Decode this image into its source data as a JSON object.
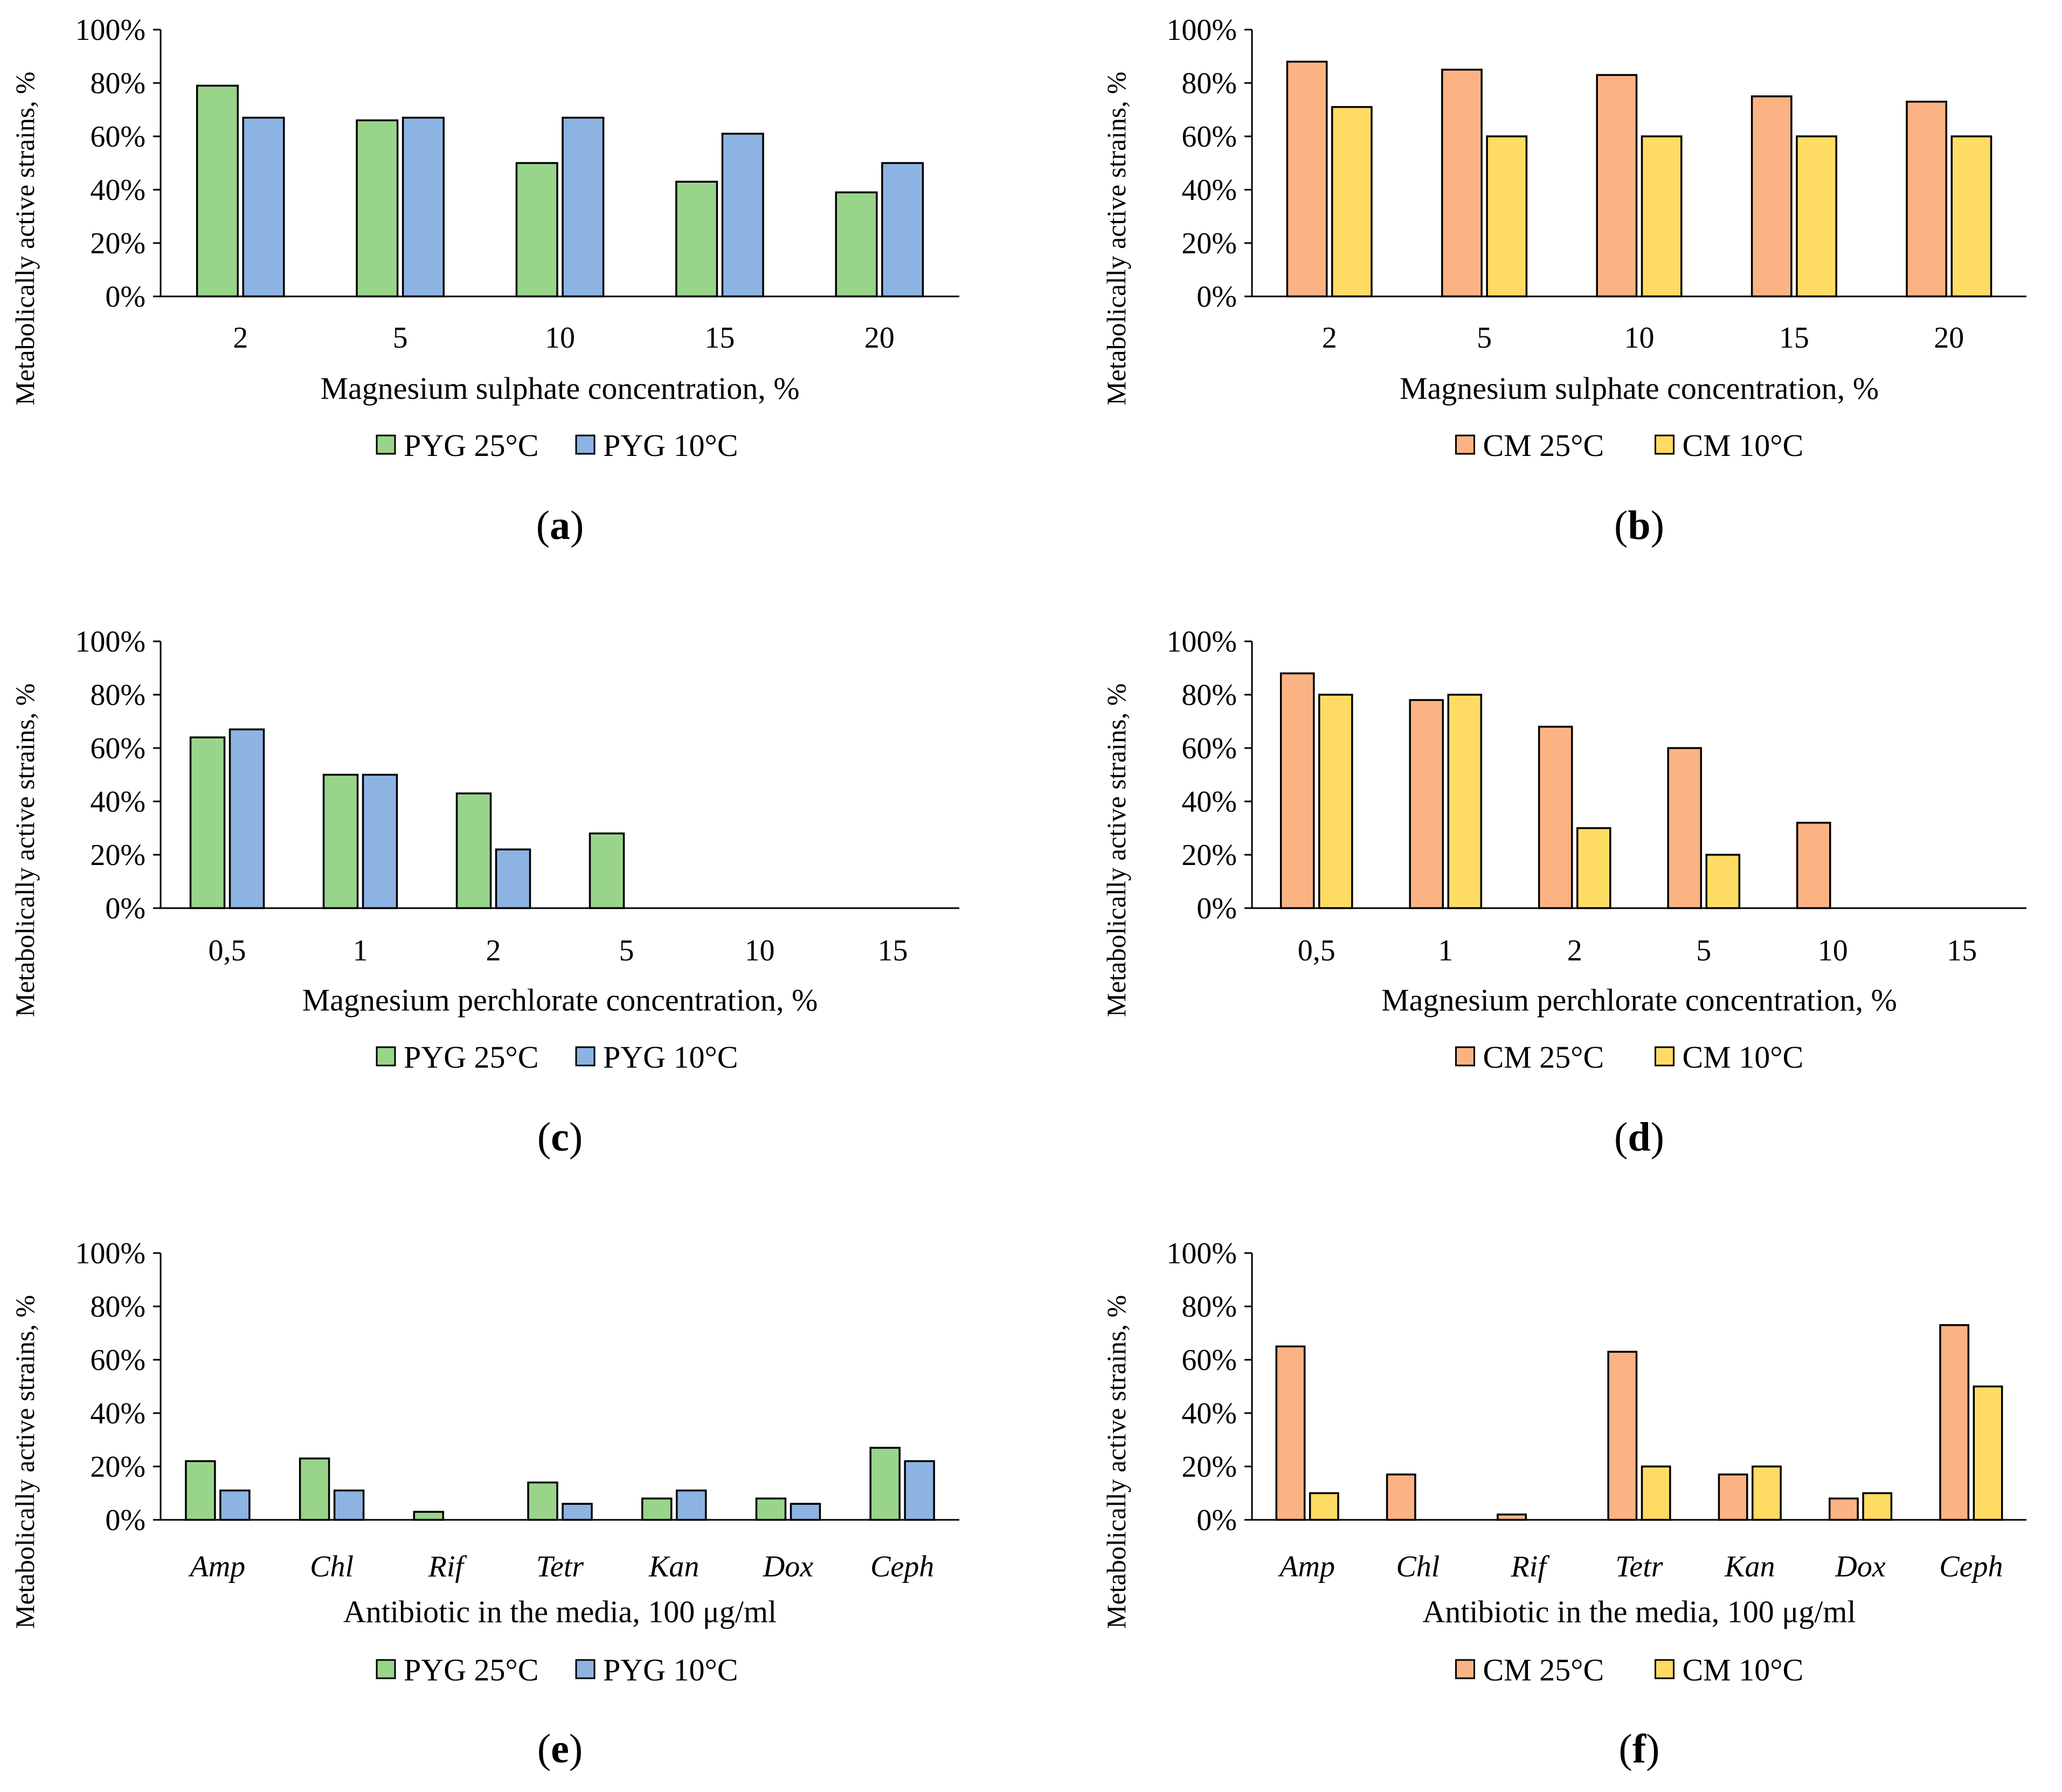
{
  "figure": {
    "colors": {
      "pyg25": "#98d58b",
      "pyg10": "#8db3e2",
      "cm25": "#fbb383",
      "cm10": "#fedc63",
      "stroke": "#000000"
    }
  },
  "chart_data": [
    {
      "id": "a",
      "panel_label": "a",
      "type": "bar",
      "title": "",
      "xlabel": "Magnesium sulphate concentration, %",
      "ylabel": "Metabolically active strains, %",
      "ylim": [
        0,
        100
      ],
      "yticks": [
        "0%",
        "20%",
        "40%",
        "60%",
        "80%",
        "100%"
      ],
      "categories": [
        "2",
        "5",
        "10",
        "15",
        "20"
      ],
      "italic_categories": false,
      "series": [
        {
          "name": "PYG 25°C",
          "color": "#98d58b",
          "values": [
            79,
            66,
            50,
            43,
            39
          ]
        },
        {
          "name": "PYG 10°C",
          "color": "#8db3e2",
          "values": [
            67,
            67,
            67,
            61,
            50
          ]
        }
      ],
      "legend": [
        "PYG 25°C",
        "PYG 10°C"
      ]
    },
    {
      "id": "b",
      "panel_label": "b",
      "type": "bar",
      "title": "",
      "xlabel": "Magnesium sulphate concentration, %",
      "ylabel": "Metabolically active strains, %",
      "ylim": [
        0,
        100
      ],
      "yticks": [
        "0%",
        "20%",
        "40%",
        "60%",
        "80%",
        "100%"
      ],
      "categories": [
        "2",
        "5",
        "10",
        "15",
        "20"
      ],
      "italic_categories": false,
      "series": [
        {
          "name": "CM 25°C",
          "color": "#fbb383",
          "values": [
            88,
            85,
            83,
            75,
            73
          ]
        },
        {
          "name": "CM 10°C",
          "color": "#fedc63",
          "values": [
            71,
            60,
            60,
            60,
            60
          ]
        }
      ],
      "legend": [
        "CM 25°C",
        "CM 10°C"
      ]
    },
    {
      "id": "c",
      "panel_label": "c",
      "type": "bar",
      "title": "",
      "xlabel": "Magnesium perchlorate concentration, %",
      "ylabel": "Metabolically active strains, %",
      "ylim": [
        0,
        100
      ],
      "yticks": [
        "0%",
        "20%",
        "40%",
        "60%",
        "80%",
        "100%"
      ],
      "categories": [
        "0,5",
        "1",
        "2",
        "5",
        "10",
        "15"
      ],
      "italic_categories": false,
      "series": [
        {
          "name": "PYG 25°C",
          "color": "#98d58b",
          "values": [
            64,
            50,
            43,
            28,
            0,
            0
          ]
        },
        {
          "name": "PYG 10°C",
          "color": "#8db3e2",
          "values": [
            67,
            50,
            22,
            0,
            0,
            0
          ]
        }
      ],
      "legend": [
        "PYG 25°C",
        "PYG 10°C"
      ]
    },
    {
      "id": "d",
      "panel_label": "d",
      "type": "bar",
      "title": "",
      "xlabel": "Magnesium perchlorate concentration, %",
      "ylabel": "Metabolically active strains, %",
      "ylim": [
        0,
        100
      ],
      "yticks": [
        "0%",
        "20%",
        "40%",
        "60%",
        "80%",
        "100%"
      ],
      "categories": [
        "0,5",
        "1",
        "2",
        "5",
        "10",
        "15"
      ],
      "italic_categories": false,
      "series": [
        {
          "name": "CM 25°C",
          "color": "#fbb383",
          "values": [
            88,
            78,
            68,
            60,
            32,
            0
          ]
        },
        {
          "name": "CM 10°C",
          "color": "#fedc63",
          "values": [
            80,
            80,
            30,
            20,
            0,
            0
          ]
        }
      ],
      "legend": [
        "CM 25°C",
        "CM 10°C"
      ]
    },
    {
      "id": "e",
      "panel_label": "e",
      "type": "bar",
      "title": "",
      "xlabel": "Antibiotic in the media, 100 μg/ml",
      "ylabel": "Metabolically active strains, %",
      "ylim": [
        0,
        100
      ],
      "yticks": [
        "0%",
        "20%",
        "40%",
        "60%",
        "80%",
        "100%"
      ],
      "categories": [
        "Amp",
        "Chl",
        "Rif",
        "Tetr",
        "Kan",
        "Dox",
        "Ceph"
      ],
      "italic_categories": true,
      "series": [
        {
          "name": "PYG 25°C",
          "color": "#98d58b",
          "values": [
            22,
            23,
            3,
            14,
            8,
            8,
            27
          ]
        },
        {
          "name": "PYG 10°C",
          "color": "#8db3e2",
          "values": [
            11,
            11,
            0,
            6,
            11,
            6,
            22
          ]
        }
      ],
      "legend": [
        "PYG 25°C",
        "PYG 10°C"
      ]
    },
    {
      "id": "f",
      "panel_label": "f",
      "type": "bar",
      "title": "",
      "xlabel": "Antibiotic in the media, 100 μg/ml",
      "ylabel": "Metabolically active strains, %",
      "ylim": [
        0,
        100
      ],
      "yticks": [
        "0%",
        "20%",
        "40%",
        "60%",
        "80%",
        "100%"
      ],
      "categories": [
        "Amp",
        "Chl",
        "Rif",
        "Tetr",
        "Kan",
        "Dox",
        "Ceph"
      ],
      "italic_categories": true,
      "series": [
        {
          "name": "CM 25°C",
          "color": "#fbb383",
          "values": [
            65,
            17,
            2,
            63,
            17,
            8,
            73
          ]
        },
        {
          "name": "CM 10°C",
          "color": "#fedc63",
          "values": [
            10,
            0,
            0,
            20,
            20,
            10,
            50
          ]
        }
      ],
      "legend": [
        "CM 25°C",
        "CM 10°C"
      ]
    }
  ]
}
